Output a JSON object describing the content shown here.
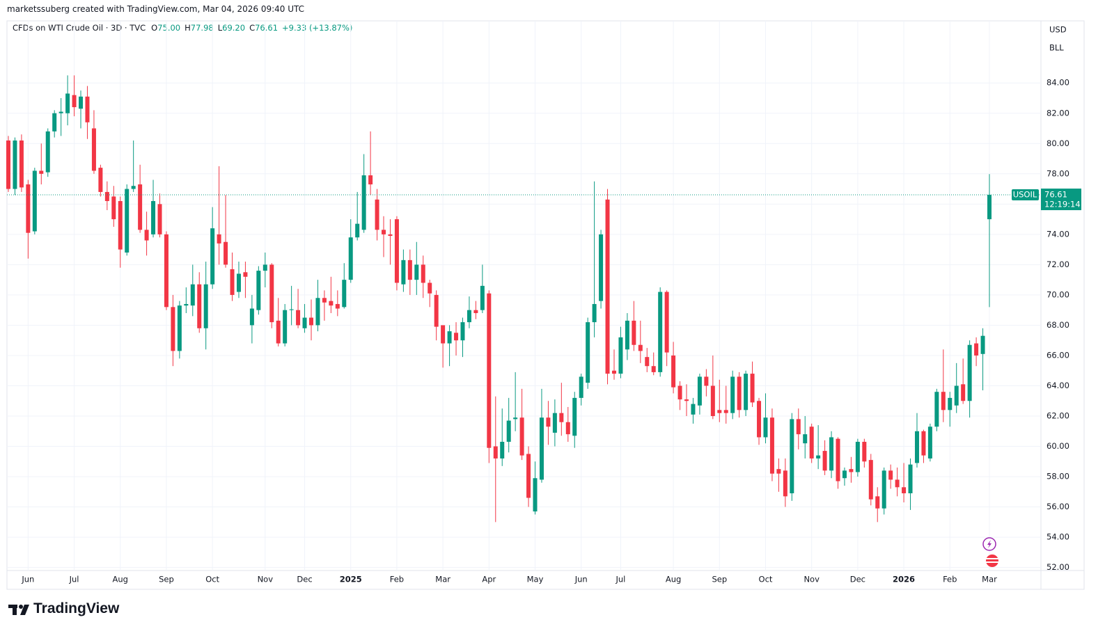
{
  "header": {
    "text": "marketssuberg created with TradingView.com, Mar 04, 2026 09:40 UTC"
  },
  "chart_data": {
    "type": "candlestick",
    "title": "CFDs on WTI Crude Oil · 3D · TVC",
    "legend_values": [
      {
        "key": "O",
        "value": "75.00"
      },
      {
        "key": "H",
        "value": "77.98"
      },
      {
        "key": "L",
        "value": "69.20"
      },
      {
        "key": "C",
        "value": "76.61"
      }
    ],
    "change": "+9.33 (+13.87%)",
    "currency": "USD",
    "unit": "BLL",
    "up_color": "#089981",
    "down_color": "#f23645",
    "ohlc": [
      [
        80.2,
        80.5,
        76.8,
        77.0
      ],
      [
        77.0,
        80.4,
        76.6,
        80.2
      ],
      [
        80.2,
        80.6,
        76.8,
        77.1
      ],
      [
        77.3,
        77.6,
        72.4,
        74.1
      ],
      [
        74.2,
        78.4,
        74.0,
        78.2
      ],
      [
        78.2,
        80.0,
        77.3,
        78.0
      ],
      [
        78.1,
        81.0,
        77.8,
        80.8
      ],
      [
        80.8,
        82.2,
        80.4,
        82.0
      ],
      [
        82.0,
        83.0,
        80.5,
        82.1
      ],
      [
        82.0,
        84.5,
        81.2,
        83.3
      ],
      [
        83.2,
        84.5,
        81.8,
        82.4
      ],
      [
        82.3,
        83.5,
        81.0,
        83.1
      ],
      [
        83.1,
        83.8,
        80.3,
        81.4
      ],
      [
        81.0,
        82.2,
        78.0,
        78.2
      ],
      [
        78.4,
        78.6,
        76.5,
        76.8
      ],
      [
        76.8,
        77.5,
        75.6,
        76.2
      ],
      [
        76.5,
        77.2,
        74.5,
        75.0
      ],
      [
        76.2,
        76.5,
        71.8,
        73.0
      ],
      [
        72.8,
        77.3,
        72.6,
        77.0
      ],
      [
        77.0,
        80.2,
        76.8,
        77.2
      ],
      [
        77.3,
        78.6,
        74.1,
        74.3
      ],
      [
        74.3,
        75.5,
        72.6,
        73.6
      ],
      [
        74.0,
        77.6,
        73.8,
        76.2
      ],
      [
        76.0,
        76.7,
        73.8,
        74.0
      ],
      [
        74.0,
        74.2,
        69.0,
        69.2
      ],
      [
        69.2,
        70.0,
        65.3,
        66.3
      ],
      [
        66.3,
        69.6,
        65.8,
        69.3
      ],
      [
        69.3,
        70.5,
        68.8,
        69.4
      ],
      [
        69.3,
        72.0,
        68.6,
        70.7
      ],
      [
        70.7,
        71.5,
        67.5,
        67.8
      ],
      [
        67.8,
        72.2,
        66.4,
        70.7
      ],
      [
        70.7,
        75.8,
        70.4,
        74.4
      ],
      [
        74.0,
        78.5,
        72.0,
        73.4
      ],
      [
        73.5,
        76.6,
        71.8,
        72.0
      ],
      [
        71.7,
        72.8,
        69.6,
        70.0
      ],
      [
        70.2,
        72.2,
        69.8,
        71.4
      ],
      [
        71.5,
        72.2,
        69.8,
        71.2
      ],
      [
        68.0,
        70.0,
        66.8,
        69.1
      ],
      [
        69.0,
        71.9,
        68.7,
        71.6
      ],
      [
        71.6,
        72.8,
        70.5,
        72.0
      ],
      [
        72.0,
        72.1,
        67.8,
        68.2
      ],
      [
        68.3,
        69.8,
        66.6,
        66.8
      ],
      [
        66.8,
        69.4,
        66.6,
        69.0
      ],
      [
        69.0,
        70.6,
        68.0,
        69.05
      ],
      [
        69.0,
        70.4,
        67.8,
        68.0
      ],
      [
        67.8,
        69.4,
        67.5,
        68.5
      ],
      [
        68.5,
        69.7,
        67.0,
        68.0
      ],
      [
        68.0,
        71.0,
        67.6,
        69.8
      ],
      [
        69.8,
        70.3,
        68.3,
        69.5
      ],
      [
        69.6,
        71.2,
        68.8,
        69.3
      ],
      [
        69.4,
        70.3,
        68.6,
        69.1
      ],
      [
        69.2,
        72.1,
        69.1,
        71.0
      ],
      [
        71.0,
        75.0,
        70.8,
        73.8
      ],
      [
        73.8,
        76.8,
        73.6,
        74.7
      ],
      [
        74.3,
        79.3,
        74.1,
        77.9
      ],
      [
        77.9,
        80.8,
        76.6,
        77.3
      ],
      [
        76.3,
        77.0,
        73.6,
        74.3
      ],
      [
        74.3,
        75.2,
        72.5,
        74.0
      ],
      [
        74.0,
        75.0,
        72.0,
        73.9
      ],
      [
        75.0,
        75.2,
        70.3,
        70.8
      ],
      [
        70.7,
        73.0,
        70.2,
        72.3
      ],
      [
        72.3,
        73.0,
        70.0,
        71.0
      ],
      [
        71.0,
        73.5,
        70.0,
        72.0
      ],
      [
        72.0,
        72.6,
        69.8,
        70.8
      ],
      [
        70.8,
        71.0,
        69.2,
        70.1
      ],
      [
        70.0,
        70.3,
        67.0,
        67.9
      ],
      [
        68.0,
        68.0,
        65.2,
        66.8
      ],
      [
        66.8,
        68.0,
        65.3,
        67.6
      ],
      [
        67.5,
        68.2,
        66.0,
        67.0
      ],
      [
        67.0,
        68.5,
        65.9,
        68.2
      ],
      [
        68.2,
        69.9,
        67.8,
        69.0
      ],
      [
        69.0,
        69.6,
        68.4,
        68.8
      ],
      [
        69.0,
        72.0,
        68.8,
        70.6
      ],
      [
        70.1,
        70.3,
        58.9,
        59.9
      ],
      [
        60.0,
        63.3,
        55.0,
        59.2
      ],
      [
        59.2,
        62.5,
        58.7,
        60.3
      ],
      [
        60.3,
        63.2,
        59.6,
        61.7
      ],
      [
        61.8,
        64.9,
        61.0,
        61.9
      ],
      [
        61.9,
        63.8,
        59.1,
        59.4
      ],
      [
        59.5,
        60.0,
        56.0,
        56.6
      ],
      [
        55.7,
        59.0,
        55.5,
        57.9
      ],
      [
        57.8,
        63.8,
        57.6,
        61.9
      ],
      [
        61.9,
        63.0,
        60.1,
        61.3
      ],
      [
        60.9,
        63.1,
        60.0,
        62.2
      ],
      [
        62.2,
        64.2,
        60.7,
        61.6
      ],
      [
        61.6,
        62.6,
        60.3,
        60.8
      ],
      [
        60.7,
        63.6,
        59.9,
        63.2
      ],
      [
        63.2,
        64.8,
        62.7,
        64.6
      ],
      [
        64.2,
        68.5,
        63.8,
        68.2
      ],
      [
        68.2,
        77.5,
        67.2,
        69.4
      ],
      [
        69.6,
        74.3,
        69.1,
        74.0
      ],
      [
        76.3,
        77.0,
        64.1,
        64.8
      ],
      [
        65.0,
        66.4,
        64.4,
        64.8
      ],
      [
        64.8,
        67.9,
        64.5,
        67.2
      ],
      [
        66.4,
        68.8,
        65.7,
        68.3
      ],
      [
        68.3,
        69.6,
        66.3,
        66.7
      ],
      [
        66.7,
        68.3,
        65.5,
        66.3
      ],
      [
        65.9,
        66.5,
        64.9,
        65.3
      ],
      [
        65.3,
        66.2,
        64.7,
        64.9
      ],
      [
        64.9,
        70.5,
        64.6,
        70.2
      ],
      [
        70.2,
        70.3,
        65.3,
        66.2
      ],
      [
        66.0,
        66.9,
        63.5,
        63.9
      ],
      [
        64.0,
        64.3,
        62.4,
        63.1
      ],
      [
        63.1,
        64.1,
        62.0,
        63.0
      ],
      [
        62.1,
        63.2,
        61.5,
        62.8
      ],
      [
        62.7,
        64.8,
        62.1,
        64.6
      ],
      [
        64.6,
        65.1,
        63.3,
        64.0
      ],
      [
        64.0,
        66.0,
        61.8,
        62.0
      ],
      [
        62.4,
        64.4,
        61.6,
        62.2
      ],
      [
        62.4,
        64.0,
        61.5,
        62.2
      ],
      [
        62.2,
        65.0,
        61.8,
        64.6
      ],
      [
        64.6,
        64.9,
        61.9,
        62.4
      ],
      [
        62.4,
        65.0,
        62.0,
        64.8
      ],
      [
        64.8,
        65.6,
        62.6,
        62.9
      ],
      [
        63.0,
        63.2,
        60.1,
        60.6
      ],
      [
        60.6,
        63.5,
        60.2,
        61.9
      ],
      [
        61.9,
        62.5,
        57.7,
        58.2
      ],
      [
        58.5,
        59.2,
        57.0,
        58.2
      ],
      [
        58.4,
        59.2,
        56.0,
        56.7
      ],
      [
        56.9,
        62.2,
        56.4,
        61.8
      ],
      [
        61.8,
        62.5,
        59.8,
        60.8
      ],
      [
        60.2,
        62.0,
        59.2,
        60.8
      ],
      [
        61.3,
        61.5,
        58.9,
        59.2
      ],
      [
        59.2,
        61.4,
        58.5,
        59.4
      ],
      [
        59.7,
        60.4,
        58.1,
        58.4
      ],
      [
        58.4,
        61.0,
        57.9,
        60.6
      ],
      [
        60.5,
        60.6,
        57.2,
        57.7
      ],
      [
        57.9,
        58.6,
        57.4,
        58.4
      ],
      [
        58.5,
        59.3,
        57.6,
        58.3
      ],
      [
        58.3,
        60.5,
        58.0,
        60.3
      ],
      [
        60.3,
        60.5,
        58.6,
        59.0
      ],
      [
        59.1,
        59.5,
        56.1,
        56.5
      ],
      [
        56.7,
        57.3,
        55.0,
        55.9
      ],
      [
        55.9,
        58.6,
        55.5,
        58.4
      ],
      [
        58.4,
        58.8,
        57.2,
        57.8
      ],
      [
        57.8,
        58.6,
        56.7,
        57.3
      ],
      [
        57.3,
        58.9,
        56.3,
        56.9
      ],
      [
        56.9,
        59.2,
        55.8,
        58.8
      ],
      [
        58.9,
        62.2,
        58.6,
        61.0
      ],
      [
        61.0,
        61.1,
        58.9,
        59.4
      ],
      [
        59.2,
        61.5,
        59.0,
        61.3
      ],
      [
        61.3,
        63.8,
        61.0,
        63.6
      ],
      [
        63.6,
        66.4,
        61.6,
        62.4
      ],
      [
        62.4,
        63.6,
        61.3,
        63.2
      ],
      [
        62.7,
        65.5,
        62.2,
        64.0
      ],
      [
        64.1,
        65.8,
        62.8,
        63.0
      ],
      [
        63.0,
        67.0,
        61.9,
        66.7
      ],
      [
        66.8,
        67.2,
        65.3,
        66.0
      ],
      [
        66.1,
        67.8,
        63.7,
        67.3
      ],
      [
        75.0,
        77.98,
        69.2,
        76.61
      ]
    ],
    "xlim": [
      0,
      149
    ],
    "xticks": [
      {
        "value": 3,
        "label": "Jun"
      },
      {
        "value": 10,
        "label": "Jul"
      },
      {
        "value": 17,
        "label": "Aug"
      },
      {
        "value": 24,
        "label": "Sep"
      },
      {
        "value": 31,
        "label": "Oct"
      },
      {
        "value": 39,
        "label": "Nov"
      },
      {
        "value": 45,
        "label": "Dec"
      },
      {
        "value": 52,
        "label": "2025"
      },
      {
        "value": 59,
        "label": "Feb"
      },
      {
        "value": 66,
        "label": "Mar"
      },
      {
        "value": 73,
        "label": "Apr"
      },
      {
        "value": 80,
        "label": "May"
      },
      {
        "value": 87,
        "label": "Jun"
      },
      {
        "value": 93,
        "label": "Jul"
      },
      {
        "value": 101,
        "label": "Aug"
      },
      {
        "value": 108,
        "label": "Sep"
      },
      {
        "value": 115,
        "label": "Oct"
      },
      {
        "value": 122,
        "label": "Nov"
      },
      {
        "value": 129,
        "label": "Dec"
      },
      {
        "value": 136,
        "label": "2026"
      },
      {
        "value": 143,
        "label": "Feb"
      },
      {
        "value": 149,
        "label": "Mar"
      }
    ],
    "ylim": [
      51.8,
      88.1
    ],
    "yticks": [
      {
        "value": 52,
        "label": "52.00"
      },
      {
        "value": 54,
        "label": "54.00"
      },
      {
        "value": 56,
        "label": "56.00"
      },
      {
        "value": 58,
        "label": "58.00"
      },
      {
        "value": 60,
        "label": "60.00"
      },
      {
        "value": 62,
        "label": "62.00"
      },
      {
        "value": 64,
        "label": "64.00"
      },
      {
        "value": 66,
        "label": "66.00"
      },
      {
        "value": 68,
        "label": "68.00"
      },
      {
        "value": 70,
        "label": "70.00"
      },
      {
        "value": 72,
        "label": "72.00"
      },
      {
        "value": 74,
        "label": "74.00"
      },
      {
        "value": 76,
        "label": "76.00"
      },
      {
        "value": 78,
        "label": "78.00"
      },
      {
        "value": 80,
        "label": "80.00"
      },
      {
        "value": 82,
        "label": "82.00"
      },
      {
        "value": 84,
        "label": "84.00"
      }
    ],
    "grid": true,
    "last_price": {
      "symbol": "USOIL",
      "value": 76.61,
      "label": "76.61",
      "countdown": "12:19:14"
    }
  },
  "footer": {
    "logo": "TradingView"
  }
}
